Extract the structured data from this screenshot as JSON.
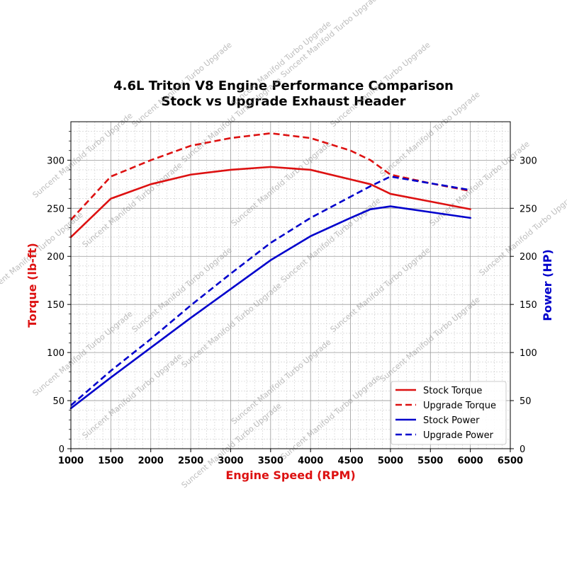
{
  "chart_data": {
    "type": "line",
    "title": "4.6L Triton V8 Engine Performance Comparison",
    "subtitle": "Stock vs Upgrade Exhaust Header",
    "xlabel": "Engine Speed (RPM)",
    "ylabel_left": "Torque (lb-ft)",
    "ylabel_right": "Power (HP)",
    "xlim": [
      1000,
      6500
    ],
    "ylim_left": [
      0,
      340
    ],
    "ylim_right": [
      0,
      340
    ],
    "x_ticks": [
      1000,
      1500,
      2000,
      2500,
      3000,
      3500,
      4000,
      4500,
      5000,
      5500,
      6000,
      6500
    ],
    "y_ticks": [
      0,
      50,
      100,
      150,
      200,
      250,
      300
    ],
    "grid": true,
    "minor_grid": true,
    "legend_position": "lower-right",
    "watermark": "Suncent Manifold Turbo Upgrade",
    "colors": {
      "torque": "#dd1111",
      "power": "#0000cc",
      "grid": "#999999"
    },
    "series": [
      {
        "name": "Stock Torque",
        "axis": "left",
        "style": "solid",
        "color": "#dd1111",
        "x": [
          1000,
          1500,
          2000,
          2500,
          3000,
          3500,
          4000,
          4500,
          4750,
          5000,
          5500,
          6000
        ],
        "y": [
          220,
          260,
          275,
          285,
          290,
          293,
          290,
          280,
          275,
          265,
          257,
          249
        ]
      },
      {
        "name": "Upgrade Torque",
        "axis": "left",
        "style": "dashed",
        "color": "#dd1111",
        "x": [
          1000,
          1500,
          2000,
          2500,
          3000,
          3500,
          4000,
          4500,
          4750,
          5000,
          5500,
          6000
        ],
        "y": [
          238,
          283,
          300,
          315,
          323,
          328,
          323,
          310,
          300,
          285,
          276,
          268
        ]
      },
      {
        "name": "Stock Power",
        "axis": "right",
        "style": "solid",
        "color": "#0000cc",
        "x": [
          1000,
          1500,
          2000,
          2500,
          3000,
          3500,
          4000,
          4500,
          4750,
          5000,
          5500,
          6000
        ],
        "y": [
          42,
          74,
          105,
          136,
          166,
          196,
          221,
          240,
          249,
          252,
          246,
          240
        ]
      },
      {
        "name": "Upgrade Power",
        "axis": "right",
        "style": "dashed",
        "color": "#0000cc",
        "x": [
          1000,
          1500,
          2000,
          2500,
          3000,
          3500,
          4000,
          4500,
          4750,
          5000,
          5500,
          6000
        ],
        "y": [
          45,
          81,
          114,
          149,
          182,
          214,
          240,
          262,
          273,
          283,
          276,
          269
        ]
      }
    ]
  }
}
